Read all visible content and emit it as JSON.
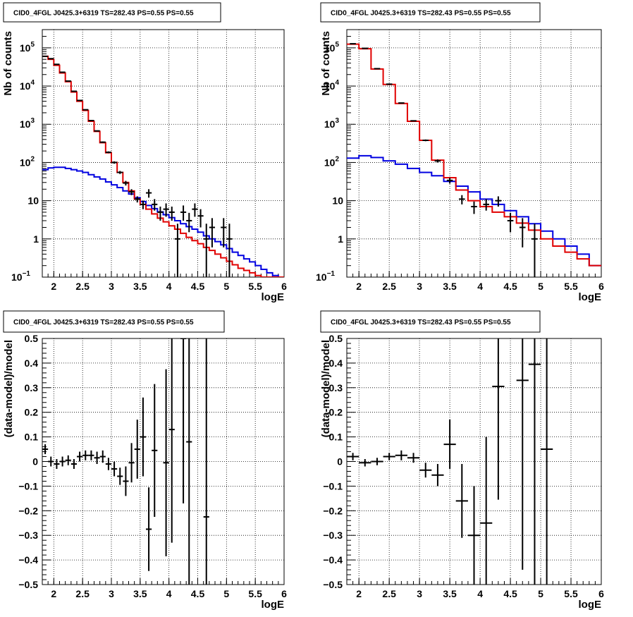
{
  "chart_data": [
    {
      "type": "line",
      "title": "CID0_4FGL J0425.3+6319 TS=282.43 PS=0.55 PS=0.55",
      "xlabel": "logE",
      "ylabel": "Nb of counts",
      "xlim": [
        1.8,
        6.0
      ],
      "ylim": [
        0.1,
        300000
      ],
      "yscale": "log",
      "grid": true,
      "xticks": [
        "2",
        "2.5",
        "3",
        "3.5",
        "4",
        "4.5",
        "5",
        "5.5",
        "6"
      ],
      "yticks": [
        {
          "base": "10",
          "exp": "−1"
        },
        {
          "base": "1",
          "exp": ""
        },
        {
          "base": "10",
          "exp": ""
        },
        {
          "base": "10",
          "exp": "2"
        },
        {
          "base": "10",
          "exp": "3"
        },
        {
          "base": "10",
          "exp": "4"
        },
        {
          "base": "10",
          "exp": "5"
        }
      ],
      "bin_edges": [
        1.8,
        1.9,
        2.0,
        2.1,
        2.2,
        2.3,
        2.4,
        2.5,
        2.6,
        2.7,
        2.8,
        2.9,
        3.0,
        3.1,
        3.2,
        3.3,
        3.4,
        3.5,
        3.6,
        3.7,
        3.8,
        3.9,
        4.0,
        4.1,
        4.2,
        4.3,
        4.4,
        4.5,
        4.6,
        4.7,
        4.8,
        4.9,
        5.0,
        5.1,
        5.2,
        5.3,
        5.4,
        5.5,
        5.6,
        5.7,
        5.8,
        5.9,
        6.0
      ],
      "series": [
        {
          "color": "#e00000",
          "values": [
            60000,
            50000,
            35000,
            22000,
            13000,
            7000,
            4000,
            2300,
            1200,
            650,
            330,
            180,
            100,
            55,
            30,
            18,
            11,
            8,
            6,
            4.5,
            3.5,
            2.8,
            2.2,
            1.8,
            1.4,
            1.1,
            0.9,
            0.75,
            0.6,
            0.5,
            0.4,
            0.32,
            0.26,
            0.21,
            0.17,
            0.15,
            0.13,
            0.11,
            0.1,
            0.1,
            0.1,
            0.1
          ]
        },
        {
          "color": "#0000e0",
          "values": [
            65,
            72,
            75,
            75,
            70,
            65,
            60,
            55,
            48,
            42,
            37,
            31,
            26,
            22,
            18,
            15,
            12,
            9.5,
            7.5,
            6.2,
            5.1,
            4.3,
            3.6,
            3.0,
            2.5,
            2.1,
            1.8,
            1.5,
            1.2,
            1.0,
            0.85,
            0.7,
            0.56,
            0.45,
            0.37,
            0.3,
            0.25,
            0.2,
            0.16,
            0.13,
            0.11,
            0.1
          ]
        }
      ],
      "points": [
        {
          "x": 1.85,
          "y": 60000,
          "lo": 59000,
          "hi": 61000
        },
        {
          "x": 1.95,
          "y": 52000,
          "lo": 51000,
          "hi": 53000
        },
        {
          "x": 2.05,
          "y": 37000,
          "lo": 36500,
          "hi": 37500
        },
        {
          "x": 2.15,
          "y": 23000,
          "lo": 22500,
          "hi": 23500
        },
        {
          "x": 2.25,
          "y": 13500,
          "lo": 13300,
          "hi": 13700
        },
        {
          "x": 2.35,
          "y": 7300,
          "lo": 7100,
          "hi": 7500
        },
        {
          "x": 2.45,
          "y": 4200,
          "lo": 4100,
          "hi": 4300
        },
        {
          "x": 2.55,
          "y": 2400,
          "lo": 2350,
          "hi": 2450
        },
        {
          "x": 2.65,
          "y": 1250,
          "lo": 1220,
          "hi": 1280
        },
        {
          "x": 2.75,
          "y": 670,
          "lo": 650,
          "hi": 690
        },
        {
          "x": 2.85,
          "y": 340,
          "lo": 325,
          "hi": 355
        },
        {
          "x": 2.95,
          "y": 185,
          "lo": 175,
          "hi": 195
        },
        {
          "x": 3.05,
          "y": 100,
          "lo": 93,
          "hi": 107
        },
        {
          "x": 3.15,
          "y": 55,
          "lo": 50,
          "hi": 60
        },
        {
          "x": 3.25,
          "y": 29,
          "lo": 25,
          "hi": 33
        },
        {
          "x": 3.35,
          "y": 17,
          "lo": 14,
          "hi": 20
        },
        {
          "x": 3.45,
          "y": 11,
          "lo": 9,
          "hi": 13
        },
        {
          "x": 3.55,
          "y": 8,
          "lo": 6,
          "hi": 10
        },
        {
          "x": 3.65,
          "y": 16,
          "lo": 12,
          "hi": 20
        },
        {
          "x": 3.75,
          "y": 8,
          "lo": 5.5,
          "hi": 11
        },
        {
          "x": 3.85,
          "y": 5,
          "lo": 3,
          "hi": 7
        },
        {
          "x": 3.95,
          "y": 6,
          "lo": 3.8,
          "hi": 8.5
        },
        {
          "x": 4.05,
          "y": 5,
          "lo": 3,
          "hi": 7
        },
        {
          "x": 4.15,
          "y": 1,
          "lo": 0.1,
          "hi": 2.5
        },
        {
          "x": 4.25,
          "y": 5,
          "lo": 3,
          "hi": 7.5
        },
        {
          "x": 4.35,
          "y": 3,
          "lo": 1.5,
          "hi": 4.8
        },
        {
          "x": 4.45,
          "y": 6,
          "lo": 3.8,
          "hi": 8.5
        },
        {
          "x": 4.55,
          "y": 4,
          "lo": 2,
          "hi": 6
        },
        {
          "x": 4.65,
          "y": 1,
          "lo": 0.1,
          "hi": 2.5
        },
        {
          "x": 4.75,
          "y": 2,
          "lo": 0.6,
          "hi": 3.5
        },
        {
          "x": 4.95,
          "y": 2,
          "lo": 0.6,
          "hi": 3.5
        },
        {
          "x": 5.05,
          "y": 1,
          "lo": 0.1,
          "hi": 2.5
        }
      ]
    },
    {
      "type": "line",
      "title": "CID0_4FGL J0425.3+6319 TS=282.43 PS=0.55 PS=0.55",
      "xlabel": "logE",
      "ylabel": "Nb of counts",
      "xlim": [
        1.8,
        6.0
      ],
      "ylim": [
        0.1,
        300000
      ],
      "yscale": "log",
      "grid": true,
      "xticks": [
        "2",
        "2.5",
        "3",
        "3.5",
        "4",
        "4.5",
        "5",
        "5.5",
        "6"
      ],
      "yticks": [
        {
          "base": "10",
          "exp": "−1"
        },
        {
          "base": "1",
          "exp": ""
        },
        {
          "base": "10",
          "exp": ""
        },
        {
          "base": "10",
          "exp": "2"
        },
        {
          "base": "10",
          "exp": "3"
        },
        {
          "base": "10",
          "exp": "4"
        },
        {
          "base": "10",
          "exp": "5"
        }
      ],
      "bin_edges": [
        1.8,
        2.0,
        2.2,
        2.4,
        2.6,
        2.8,
        3.0,
        3.2,
        3.4,
        3.6,
        3.8,
        4.0,
        4.2,
        4.4,
        4.6,
        4.8,
        5.0,
        5.2,
        5.4,
        5.6,
        5.8,
        6.0
      ],
      "series": [
        {
          "color": "#e00000",
          "values": [
            125000,
            95000,
            28000,
            11000,
            3500,
            1200,
            380,
            115,
            40,
            19,
            10,
            7,
            5,
            3.8,
            2.6,
            1.7,
            1.0,
            0.65,
            0.45,
            0.3,
            0.2
          ]
        },
        {
          "color": "#0000e0",
          "values": [
            130,
            150,
            135,
            110,
            90,
            70,
            55,
            45,
            32,
            24,
            17,
            11,
            8,
            5.5,
            3.8,
            2.5,
            1.6,
            1.0,
            0.65,
            0.4,
            0.2
          ]
        }
      ],
      "points": [
        {
          "x": 1.9,
          "y": 128000,
          "lo": 127000,
          "hi": 129000
        },
        {
          "x": 2.1,
          "y": 97000,
          "lo": 96500,
          "hi": 97500
        },
        {
          "x": 2.3,
          "y": 28500,
          "lo": 28300,
          "hi": 28700
        },
        {
          "x": 2.5,
          "y": 11200,
          "lo": 11100,
          "hi": 11300
        },
        {
          "x": 2.7,
          "y": 3600,
          "lo": 3550,
          "hi": 3650
        },
        {
          "x": 2.9,
          "y": 1230,
          "lo": 1200,
          "hi": 1260
        },
        {
          "x": 3.1,
          "y": 380,
          "lo": 360,
          "hi": 400
        },
        {
          "x": 3.3,
          "y": 110,
          "lo": 100,
          "hi": 120
        },
        {
          "x": 3.5,
          "y": 34,
          "lo": 28,
          "hi": 40
        },
        {
          "x": 3.7,
          "y": 11,
          "lo": 8,
          "hi": 14
        },
        {
          "x": 3.9,
          "y": 7,
          "lo": 4.5,
          "hi": 9.5
        },
        {
          "x": 4.1,
          "y": 8,
          "lo": 5.5,
          "hi": 11
        },
        {
          "x": 4.3,
          "y": 10,
          "lo": 7,
          "hi": 13
        },
        {
          "x": 4.5,
          "y": 3,
          "lo": 1.5,
          "hi": 4.8
        },
        {
          "x": 4.7,
          "y": 2,
          "lo": 0.6,
          "hi": 3.5
        },
        {
          "x": 4.9,
          "y": 1,
          "lo": 0.1,
          "hi": 2.5
        }
      ]
    },
    {
      "type": "scatter",
      "title": "CID0_4FGL J0425.3+6319 TS=282.43 PS=0.55 PS=0.55",
      "xlabel": "logE",
      "ylabel": "(data-model)/model",
      "xlim": [
        1.8,
        6.0
      ],
      "ylim": [
        -0.5,
        0.5
      ],
      "grid": true,
      "xticks": [
        "2",
        "2.5",
        "3",
        "3.5",
        "4",
        "4.5",
        "5",
        "5.5",
        "6"
      ],
      "yticks": [
        "−0.5",
        "−0.4",
        "−0.3",
        "−0.2",
        "−0.1",
        "0",
        "0.1",
        "0.2",
        "0.3",
        "0.4",
        "0.5"
      ],
      "points": [
        {
          "x": 1.85,
          "y": 0.05,
          "err": 0.02,
          "xerr": 0.05
        },
        {
          "x": 1.95,
          "y": 0.0,
          "err": 0.02,
          "xerr": 0.05
        },
        {
          "x": 2.05,
          "y": -0.01,
          "err": 0.02,
          "xerr": 0.05
        },
        {
          "x": 2.15,
          "y": 0.0,
          "err": 0.02,
          "xerr": 0.05
        },
        {
          "x": 2.25,
          "y": 0.005,
          "err": 0.02,
          "xerr": 0.05
        },
        {
          "x": 2.35,
          "y": -0.01,
          "err": 0.02,
          "xerr": 0.05
        },
        {
          "x": 2.45,
          "y": 0.02,
          "err": 0.02,
          "xerr": 0.05
        },
        {
          "x": 2.55,
          "y": 0.025,
          "err": 0.02,
          "xerr": 0.05
        },
        {
          "x": 2.65,
          "y": 0.025,
          "err": 0.02,
          "xerr": 0.05
        },
        {
          "x": 2.75,
          "y": 0.015,
          "err": 0.025,
          "xerr": 0.05
        },
        {
          "x": 2.85,
          "y": 0.02,
          "err": 0.025,
          "xerr": 0.05
        },
        {
          "x": 2.95,
          "y": -0.01,
          "err": 0.025,
          "xerr": 0.05
        },
        {
          "x": 3.05,
          "y": -0.03,
          "err": 0.03,
          "xerr": 0.05
        },
        {
          "x": 3.15,
          "y": -0.06,
          "err": 0.035,
          "xerr": 0.05
        },
        {
          "x": 3.25,
          "y": -0.08,
          "err": 0.06,
          "xerr": 0.05
        },
        {
          "x": 3.35,
          "y": -0.005,
          "err": 0.08,
          "xerr": 0.05
        },
        {
          "x": 3.45,
          "y": 0.05,
          "err": 0.12,
          "xerr": 0.05
        },
        {
          "x": 3.55,
          "y": 0.1,
          "err": 0.16,
          "xerr": 0.05
        },
        {
          "x": 3.65,
          "y": -0.275,
          "err": 0.17,
          "xerr": 0.05
        },
        {
          "x": 3.75,
          "y": 0.045,
          "err": 0.27,
          "xerr": 0.05
        },
        {
          "x": 3.95,
          "y": -0.005,
          "err": 0.38,
          "xerr": 0.05
        },
        {
          "x": 4.05,
          "y": 0.13,
          "err": 0.46,
          "xerr": 0.05
        },
        {
          "x": 4.25,
          "y": 0.5,
          "err": 0.67,
          "xerr": 0.05
        },
        {
          "x": 4.35,
          "y": 0.08,
          "err": 0.9,
          "xerr": 0.05
        },
        {
          "x": 4.65,
          "y": -0.225,
          "err": 1.0,
          "xerr": 0.05
        }
      ]
    },
    {
      "type": "scatter",
      "title": "CID0_4FGL J0425.3+6319 TS=282.43 PS=0.55 PS=0.55",
      "xlabel": "logE",
      "ylabel": "(data-model)/model",
      "xlim": [
        1.8,
        6.0
      ],
      "ylim": [
        -0.5,
        0.5
      ],
      "grid": true,
      "xticks": [
        "2",
        "2.5",
        "3",
        "3.5",
        "4",
        "4.5",
        "5",
        "5.5",
        "6"
      ],
      "yticks": [
        "−0.5",
        "−0.4",
        "−0.3",
        "−0.2",
        "−0.1",
        "0",
        "0.1",
        "0.2",
        "0.3",
        "0.4",
        "0.5"
      ],
      "points": [
        {
          "x": 1.9,
          "y": 0.02,
          "err": 0.015,
          "xerr": 0.1
        },
        {
          "x": 2.1,
          "y": -0.005,
          "err": 0.015,
          "xerr": 0.1
        },
        {
          "x": 2.3,
          "y": 0.0,
          "err": 0.015,
          "xerr": 0.1
        },
        {
          "x": 2.5,
          "y": 0.02,
          "err": 0.015,
          "xerr": 0.1
        },
        {
          "x": 2.7,
          "y": 0.025,
          "err": 0.02,
          "xerr": 0.1
        },
        {
          "x": 2.9,
          "y": 0.015,
          "err": 0.02,
          "xerr": 0.1
        },
        {
          "x": 3.1,
          "y": -0.035,
          "err": 0.03,
          "xerr": 0.1
        },
        {
          "x": 3.3,
          "y": -0.055,
          "err": 0.045,
          "xerr": 0.1
        },
        {
          "x": 3.5,
          "y": 0.07,
          "err": 0.1,
          "xerr": 0.1
        },
        {
          "x": 3.7,
          "y": -0.16,
          "err": 0.15,
          "xerr": 0.1
        },
        {
          "x": 3.9,
          "y": -0.3,
          "err": 0.2,
          "xerr": 0.1
        },
        {
          "x": 4.1,
          "y": -0.25,
          "err": 0.35,
          "xerr": 0.1
        },
        {
          "x": 4.3,
          "y": 0.305,
          "err": 0.46,
          "xerr": 0.1
        },
        {
          "x": 4.7,
          "y": 0.33,
          "err": 0.77,
          "xerr": 0.1
        },
        {
          "x": 4.9,
          "y": 0.395,
          "err": 0.9,
          "xerr": 0.1
        },
        {
          "x": 5.1,
          "y": 0.05,
          "err": 1.0,
          "xerr": 0.1
        }
      ]
    }
  ]
}
